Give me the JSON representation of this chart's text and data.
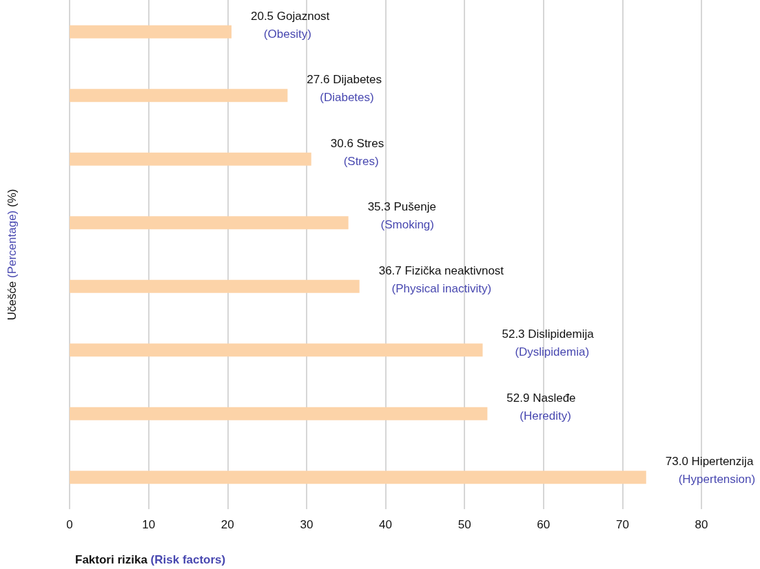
{
  "chart_data": {
    "type": "bar",
    "orientation": "horizontal",
    "categories": [
      "Gojaznost (Obesity)",
      "Dijabetes (Diabetes)",
      "Stres (Stres)",
      "Pušenje (Smoking)",
      "Fizička neaktivnost (Physical inactivity)",
      "Dislipidemija (Dyslipidemia)",
      "Nasleđe (Heredity)",
      "Hipertenzija (Hypertension)"
    ],
    "values": [
      20.5,
      27.6,
      30.6,
      35.3,
      36.7,
      52.3,
      52.9,
      73.0
    ],
    "value_labels": [
      "20.5",
      "27.6",
      "30.6",
      "35.3",
      "36.7",
      "52.3",
      "52.9",
      "73.0"
    ],
    "color": "#fcd3a8",
    "xlim": [
      0,
      80
    ],
    "xticks": [
      0,
      10,
      20,
      30,
      40,
      50,
      60,
      70,
      80
    ],
    "xlabel": "Faktori rizika (Risk factors)",
    "ylabel": "Učešće (Percentage) (%)",
    "grid": "x",
    "tick_labels": "x"
  }
}
